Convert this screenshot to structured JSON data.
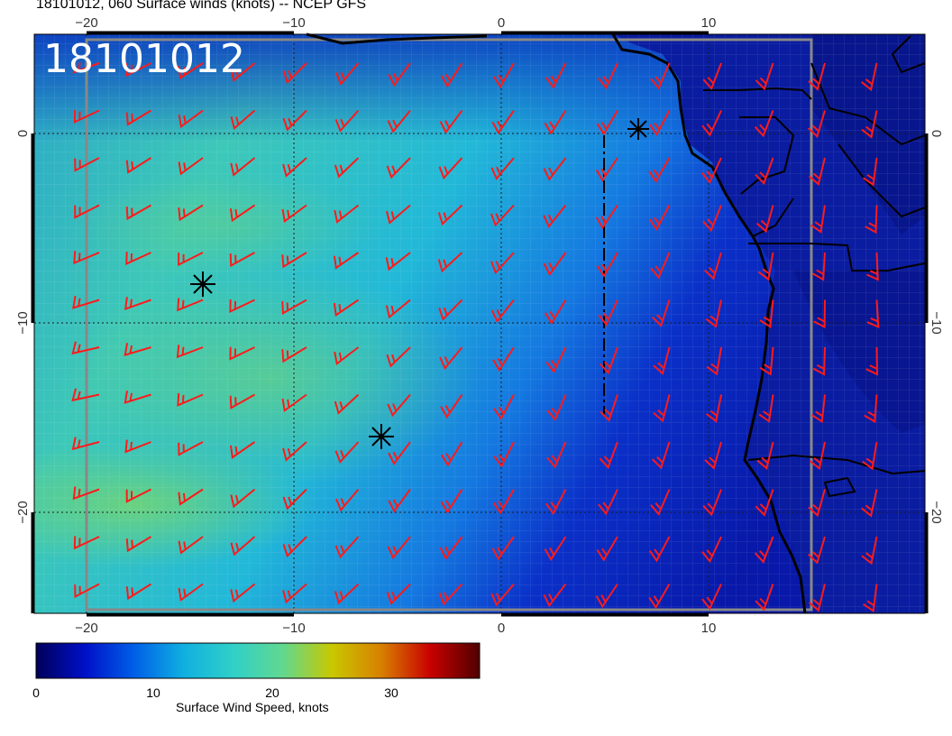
{
  "title": "18101012, 060 Surface winds (knots) -- NCEP GFS",
  "stamp": "18101012",
  "lon_ticks": [
    "−20",
    "−10",
    "0",
    "10"
  ],
  "lat_ticks": [
    "0",
    "−10",
    "−20"
  ],
  "colorbar": {
    "label": "Surface Wind Speed, knots",
    "ticks": [
      "0",
      "10",
      "20",
      "30"
    ],
    "colors": [
      "#00005a",
      "#0010c8",
      "#0060e8",
      "#10b0e0",
      "#30d0c8",
      "#60d890",
      "#c8c800",
      "#d88000",
      "#c80000",
      "#500000"
    ]
  },
  "barb_color": "#ff1a1a",
  "coast_color": "#000000",
  "markers": [
    {
      "name": "marker-north",
      "symbol": "asterisk"
    },
    {
      "name": "marker-west",
      "symbol": "asterisk"
    },
    {
      "name": "marker-south",
      "symbol": "asterisk"
    }
  ]
}
